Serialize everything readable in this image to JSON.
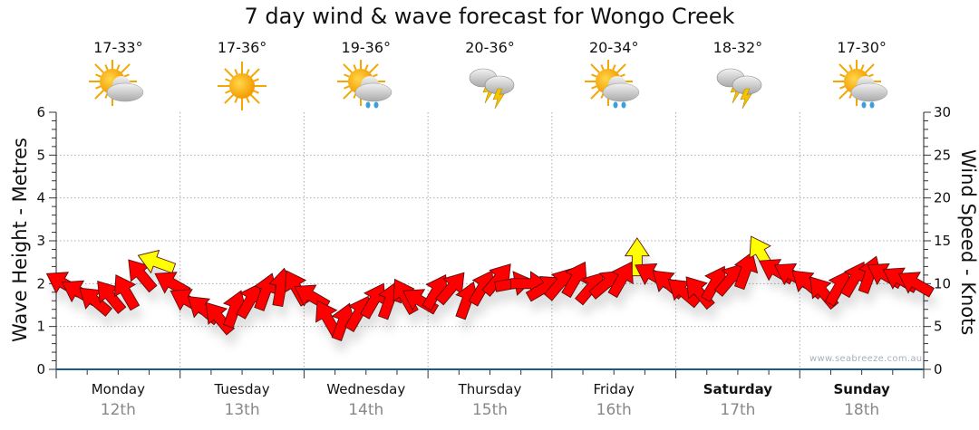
{
  "title": "7 day wind & wave forecast for Wongo Creek",
  "watermark": "www.seabreeze.com.au",
  "colors": {
    "arrow_normal": "#ff0000",
    "arrow_strong": "#ffff00",
    "axis": "#1a5a8a",
    "grid": "#999999"
  },
  "days": [
    {
      "name": "Monday",
      "date": "12th",
      "temp": "17-33°",
      "icon": "sun-cloud",
      "bold": false
    },
    {
      "name": "Tuesday",
      "date": "13th",
      "temp": "17-36°",
      "icon": "sun",
      "bold": false
    },
    {
      "name": "Wednesday",
      "date": "14th",
      "temp": "19-36°",
      "icon": "sun-cloud-rain",
      "bold": false
    },
    {
      "name": "Thursday",
      "date": "15th",
      "temp": "20-36°",
      "icon": "storm",
      "bold": false
    },
    {
      "name": "Friday",
      "date": "16th",
      "temp": "20-34°",
      "icon": "sun-cloud-rain",
      "bold": false
    },
    {
      "name": "Saturday",
      "date": "17th",
      "temp": "18-32°",
      "icon": "storm",
      "bold": true
    },
    {
      "name": "Sunday",
      "date": "18th",
      "temp": "17-30°",
      "icon": "sun-cloud-rain",
      "bold": true
    }
  ],
  "chart_data": {
    "type": "scatter",
    "title": "7 day wind & wave forecast for Wongo Creek",
    "ylabel_left": "Wave Height - Metres",
    "ylabel_right": "Wind Speed - Knots",
    "ylim_left": [
      0,
      6
    ],
    "ylim_right": [
      0,
      30
    ],
    "yticks_left": [
      "0",
      "1",
      "2",
      "3",
      "4",
      "5",
      "6"
    ],
    "yticks_right": [
      "0",
      "5",
      "10",
      "15",
      "20",
      "25",
      "30"
    ],
    "grid": true,
    "x_interval_hours": 3,
    "strong_threshold_knots": 12.5,
    "wind_knots": [
      10,
      9,
      8,
      8.5,
      9,
      11,
      12.5,
      10,
      8,
      7,
      6,
      7,
      8,
      9,
      9.5,
      9.5,
      8.5,
      6,
      5.5,
      6.5,
      8,
      8,
      8.5,
      8,
      9,
      9.5,
      8,
      9.5,
      10.5,
      10,
      10,
      9.5,
      10,
      10.5,
      9.5,
      10,
      10.5,
      13,
      11,
      10,
      9,
      9,
      10,
      10.5,
      11.5,
      13.5,
      11.5,
      11,
      10,
      9,
      9.5,
      10.5,
      11,
      11,
      10.5,
      10
    ],
    "arrow_direction_deg": [
      300,
      300,
      310,
      320,
      330,
      320,
      290,
      300,
      300,
      310,
      320,
      20,
      30,
      20,
      10,
      330,
      300,
      330,
      20,
      30,
      30,
      20,
      330,
      300,
      30,
      40,
      20,
      30,
      40,
      80,
      90,
      60,
      40,
      30,
      40,
      50,
      30,
      0,
      300,
      310,
      310,
      320,
      30,
      40,
      20,
      330,
      300,
      300,
      310,
      320,
      30,
      30,
      20,
      300,
      300,
      300
    ]
  }
}
